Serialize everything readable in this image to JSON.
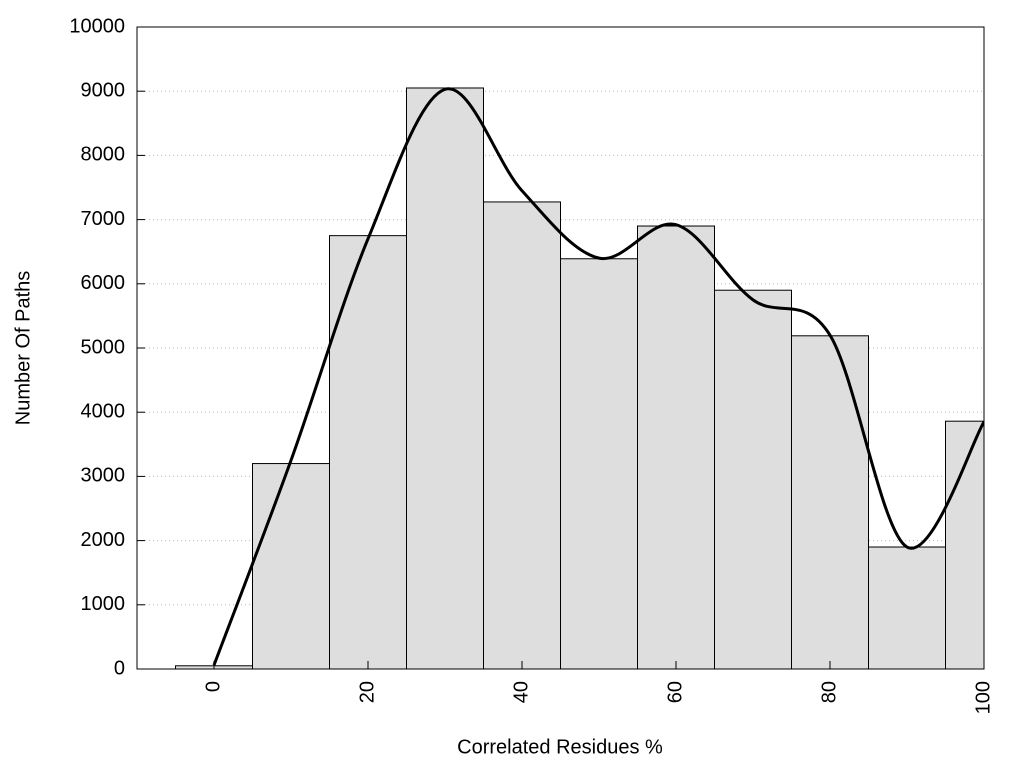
{
  "chart_data": {
    "type": "histogram",
    "x_label": "Correlated Residues %",
    "y_label": "Number Of Paths",
    "bins": [
      -5,
      5,
      15,
      25,
      35,
      45,
      55,
      65,
      75,
      85,
      95,
      105
    ],
    "values": [
      50,
      3200,
      6750,
      9050,
      7275,
      6390,
      6900,
      5900,
      5190,
      1900,
      3860
    ],
    "color": "#dedede",
    "overlay": {
      "type": "line",
      "x": [
        0,
        10,
        20,
        30,
        40,
        50,
        60,
        70,
        80,
        90,
        100
      ],
      "values": [
        60,
        3250,
        6700,
        9030,
        7450,
        6400,
        6920,
        5750,
        5200,
        1900,
        3850
      ],
      "color": "#000000"
    },
    "xlim": [
      -10,
      100
    ],
    "xticks": [
      0,
      20,
      40,
      60,
      80,
      100
    ],
    "ylim": [
      0,
      10000
    ],
    "yticks": [
      0,
      1000,
      2000,
      3000,
      4000,
      5000,
      6000,
      7000,
      8000,
      9000,
      10000
    ],
    "grid": true
  }
}
